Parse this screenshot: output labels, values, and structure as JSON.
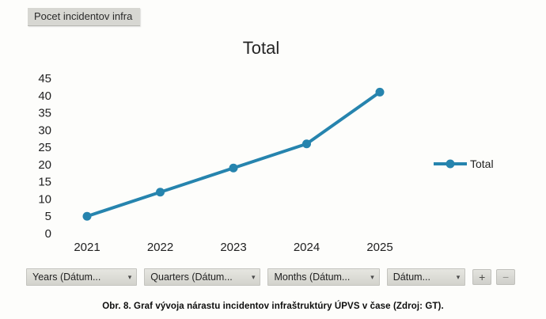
{
  "tab": {
    "label": "Pocet incidentov infra"
  },
  "chart_data": {
    "type": "line",
    "title": "Total",
    "categories": [
      "2021",
      "2022",
      "2023",
      "2024",
      "2025"
    ],
    "series": [
      {
        "name": "Total",
        "values": [
          5,
          12,
          19,
          26,
          41
        ],
        "color": "#2684ae"
      }
    ],
    "xlabel": "",
    "ylabel": "",
    "ylim": [
      0,
      45
    ],
    "ytick_step": 5,
    "grid": false,
    "legend_position": "right",
    "marker": "circle"
  },
  "filters": {
    "caret_icon": "▾",
    "dropdowns": [
      {
        "label": "Years (Dátum..."
      },
      {
        "label": "Quarters (Dátum..."
      },
      {
        "label": "Months (Dátum..."
      },
      {
        "label": "Dátum..."
      }
    ],
    "add_label": "+",
    "remove_label": "−"
  },
  "caption": "Obr. 8. Graf vývoja nárastu incidentov infraštruktúry ÚPVS v čase (Zdroj: GT)."
}
